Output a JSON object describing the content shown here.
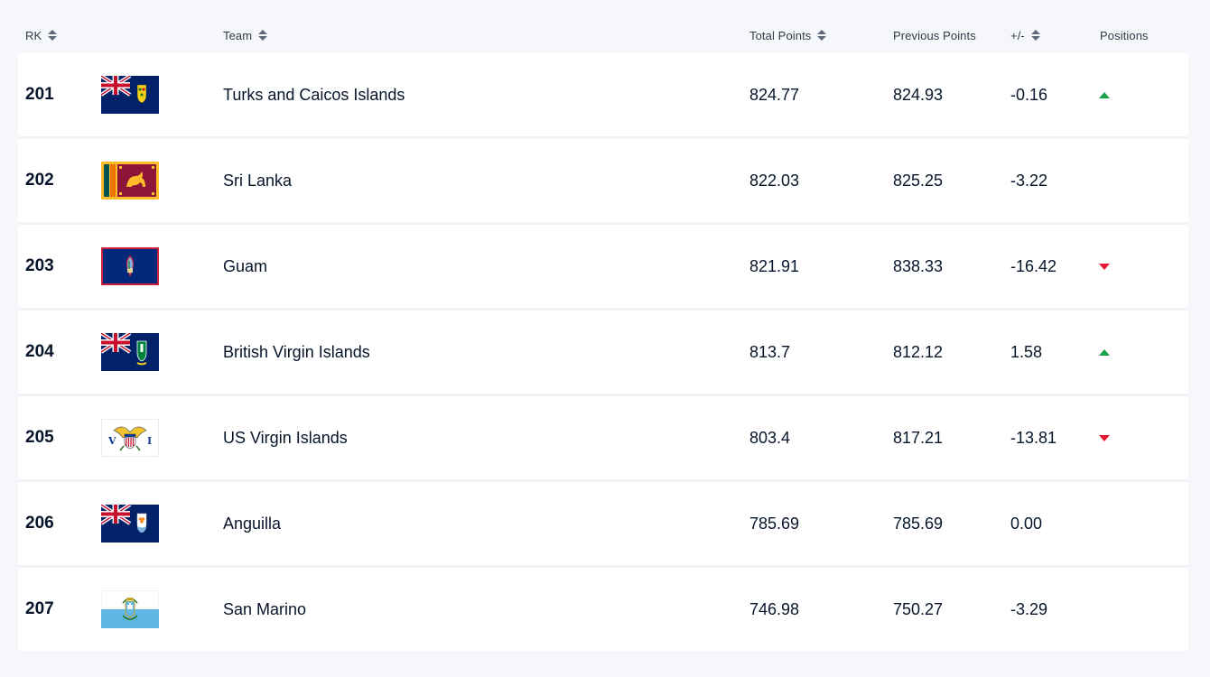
{
  "header": {
    "rk": "RK",
    "team": "Team",
    "total_points": "Total Points",
    "previous_points": "Previous Points",
    "diff": "+/-",
    "positions": "Positions"
  },
  "rows": [
    {
      "rank": "201",
      "team": "Turks and Caicos Islands",
      "total": "824.77",
      "previous": "824.93",
      "diff": "-0.16",
      "movement": "up",
      "flag": "turks-and-caicos-flag"
    },
    {
      "rank": "202",
      "team": "Sri Lanka",
      "total": "822.03",
      "previous": "825.25",
      "diff": "-3.22",
      "movement": "none",
      "flag": "sri-lanka-flag"
    },
    {
      "rank": "203",
      "team": "Guam",
      "total": "821.91",
      "previous": "838.33",
      "diff": "-16.42",
      "movement": "down",
      "flag": "guam-flag"
    },
    {
      "rank": "204",
      "team": "British Virgin Islands",
      "total": "813.7",
      "previous": "812.12",
      "diff": "1.58",
      "movement": "up",
      "flag": "british-virgin-islands-flag"
    },
    {
      "rank": "205",
      "team": "US Virgin Islands",
      "total": "803.4",
      "previous": "817.21",
      "diff": "-13.81",
      "movement": "down",
      "flag": "us-virgin-islands-flag"
    },
    {
      "rank": "206",
      "team": "Anguilla",
      "total": "785.69",
      "previous": "785.69",
      "diff": "0.00",
      "movement": "none",
      "flag": "anguilla-flag"
    },
    {
      "rank": "207",
      "team": "San Marino",
      "total": "746.98",
      "previous": "750.27",
      "diff": "-3.29",
      "movement": "none",
      "flag": "san-marino-flag"
    }
  ],
  "colors": {
    "up": "#19a04a",
    "down": "#e4172f",
    "background": "#f6f7fb",
    "row": "#ffffff"
  }
}
